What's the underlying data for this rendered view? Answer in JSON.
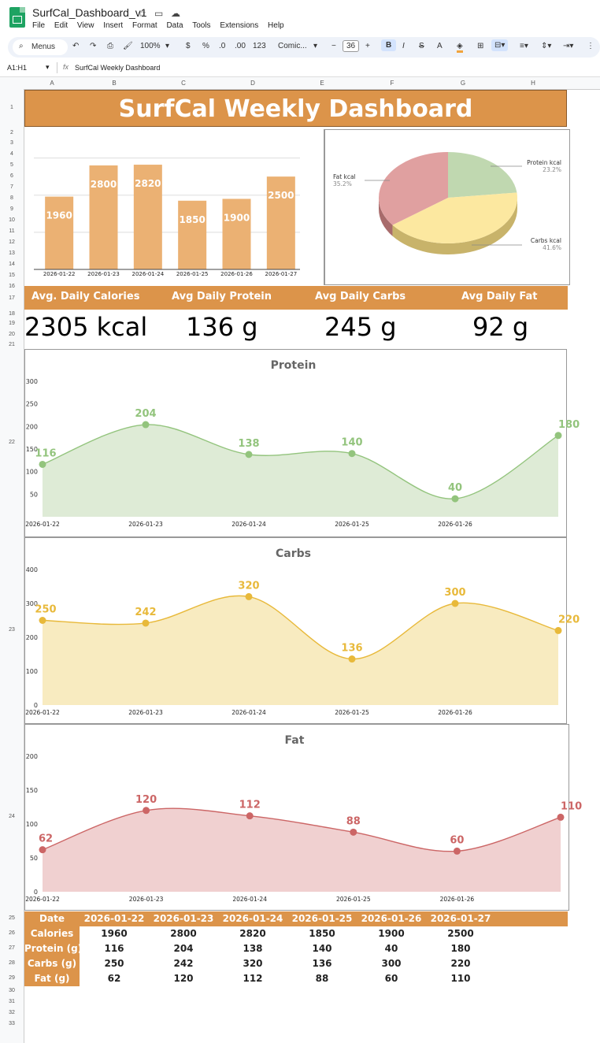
{
  "app": {
    "title": "SurfCal_Dashboard_v1",
    "menu": [
      "File",
      "Edit",
      "View",
      "Insert",
      "Format",
      "Data",
      "Tools",
      "Extensions",
      "Help"
    ]
  },
  "toolbar": {
    "search_label": "Menus",
    "zoom": "100%",
    "currency": "$",
    "percent": "%",
    "dec_less": ".0",
    "dec_more": ".00",
    "number_format": "123",
    "font": "Comic...",
    "font_size": "36"
  },
  "formula_bar": {
    "cell_ref": "A1:H1",
    "fx": "fx",
    "content": "SurfCal Weekly Dashboard"
  },
  "columns": [
    "A",
    "B",
    "C",
    "D",
    "E",
    "F",
    "G",
    "H"
  ],
  "rows": [
    "1",
    "2",
    "3",
    "4",
    "5",
    "6",
    "7",
    "8",
    "9",
    "10",
    "11",
    "12",
    "13",
    "14",
    "15",
    "16",
    "17",
    "18",
    "19",
    "20",
    "21",
    "22",
    "23",
    "24",
    "25",
    "26",
    "27",
    "28",
    "29",
    "30",
    "31",
    "32",
    "33"
  ],
  "dashboard": {
    "title": "SurfCal Weekly Dashboard",
    "kpi_labels": [
      "Avg. Daily Calories",
      "Avg Daily Protein",
      "Avg Daily Carbs",
      "Avg Daily Fat"
    ],
    "kpi_values": [
      "2305 kcal",
      "136 g",
      "245 g",
      "92 g"
    ]
  },
  "colors": {
    "accent": "#dc944a",
    "bar": "#ebb173",
    "protein": "#93c47d",
    "carbs": "#f1c232",
    "fat": "#cc6666"
  },
  "chart_data": [
    {
      "type": "bar",
      "title": "",
      "categories": [
        "2026-01-22",
        "2026-01-23",
        "2026-01-24",
        "2026-01-25",
        "2026-01-26",
        "2026-01-27"
      ],
      "values": [
        1960,
        2800,
        2820,
        1850,
        1900,
        2500
      ],
      "ylim": [
        0,
        3500
      ]
    },
    {
      "type": "pie",
      "title": "",
      "labels": [
        "Protein kcal",
        "Carbs kcal",
        "Fat kcal"
      ],
      "percent_labels": [
        "23.2%",
        "41.6%",
        "35.2%"
      ],
      "values": [
        23.2,
        41.6,
        35.2
      ],
      "colors": [
        "#c0d8b0",
        "#fce8a0",
        "#e0a0a0"
      ]
    },
    {
      "type": "area",
      "title": "Protein",
      "x": [
        "2026-01-22",
        "2026-01-23",
        "2026-01-24",
        "2026-01-25",
        "2026-01-26",
        "2026-01-27"
      ],
      "x_tick_labels": [
        "2026-01-22",
        "2026-01-23",
        "2026-01-24",
        "2026-01-25",
        "2026-01-26"
      ],
      "values": [
        116,
        204,
        138,
        140,
        40,
        180
      ],
      "yticks": [
        "50",
        "100",
        "150",
        "200",
        "250",
        "300"
      ],
      "ylim": [
        0,
        300
      ],
      "color": "#93c47d",
      "fill": "#deebd6"
    },
    {
      "type": "area",
      "title": "Carbs",
      "x": [
        "2026-01-22",
        "2026-01-23",
        "2026-01-24",
        "2026-01-25",
        "2026-01-26",
        "2026-01-27"
      ],
      "x_tick_labels": [
        "2026-01-22",
        "2026-01-23",
        "2026-01-24",
        "2026-01-25",
        "2026-01-26"
      ],
      "values": [
        250,
        242,
        320,
        136,
        300,
        220
      ],
      "yticks": [
        "0",
        "100",
        "200",
        "300",
        "400"
      ],
      "ylim": [
        0,
        400
      ],
      "color": "#e8b93a",
      "fill": "#f8ebc0"
    },
    {
      "type": "area",
      "title": "Fat",
      "x": [
        "2026-01-22",
        "2026-01-23",
        "2026-01-24",
        "2026-01-25",
        "2026-01-26",
        "2026-01-27"
      ],
      "x_tick_labels": [
        "2026-01-22",
        "2026-01-23",
        "2026-01-24",
        "2026-01-25",
        "2026-01-26"
      ],
      "values": [
        62,
        120,
        112,
        88,
        60,
        110
      ],
      "yticks": [
        "0",
        "50",
        "100",
        "150",
        "200"
      ],
      "ylim": [
        0,
        200
      ],
      "color": "#cc6666",
      "fill": "#f0d0d0"
    }
  ],
  "table": {
    "header": "Date",
    "dates": [
      "2026-01-22",
      "2026-01-23",
      "2026-01-24",
      "2026-01-25",
      "2026-01-26",
      "2026-01-27"
    ],
    "rows": [
      {
        "label": "Calories",
        "values": [
          "1960",
          "2800",
          "2820",
          "1850",
          "1900",
          "2500"
        ]
      },
      {
        "label": "Protein (g)",
        "values": [
          "116",
          "204",
          "138",
          "140",
          "40",
          "180"
        ]
      },
      {
        "label": "Carbs (g)",
        "values": [
          "250",
          "242",
          "320",
          "136",
          "300",
          "220"
        ]
      },
      {
        "label": "Fat (g)",
        "values": [
          "62",
          "120",
          "112",
          "88",
          "60",
          "110"
        ]
      }
    ]
  }
}
